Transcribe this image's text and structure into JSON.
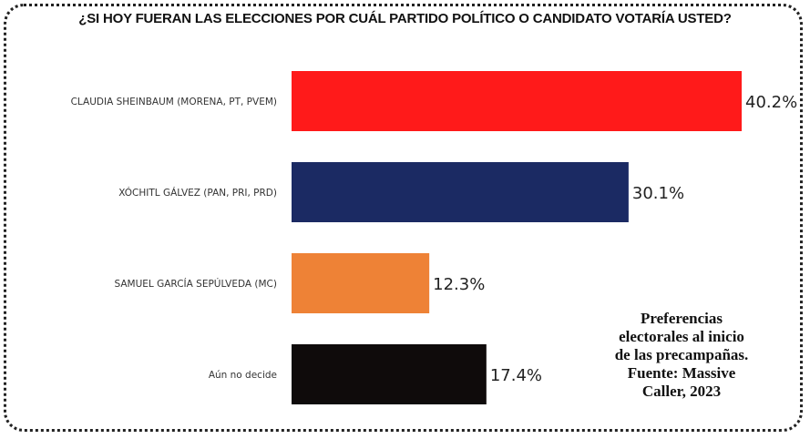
{
  "chart_data": {
    "type": "bar",
    "orientation": "horizontal",
    "title": "¿SI HOY FUERAN LAS ELECCIONES POR CUÁL PARTIDO POLÍTICO O CANDIDATO VOTARÍA USTED?",
    "categories": [
      "CLAUDIA SHEINBAUM (MORENA, PT, PVEM)",
      "XÓCHITL GÁLVEZ (PAN, PRI, PRD)",
      "SAMUEL GARCÍA SEPÚLVEDA (MC)",
      "Aún no decide"
    ],
    "values": [
      40.2,
      30.1,
      12.3,
      17.4
    ],
    "value_labels": [
      "40.2%",
      "30.1%",
      "12.3%",
      "17.4%"
    ],
    "colors": [
      "#ff1a1a",
      "#1b2a63",
      "#ee8236",
      "#0f0b0b"
    ],
    "xlim": [
      0,
      40.2
    ],
    "grid": false,
    "legend": "none"
  },
  "note_lines": [
    "Preferencias",
    "electorales al inicio",
    "de las precampañas.",
    "Fuente: Massive",
    "Caller, 2023"
  ]
}
